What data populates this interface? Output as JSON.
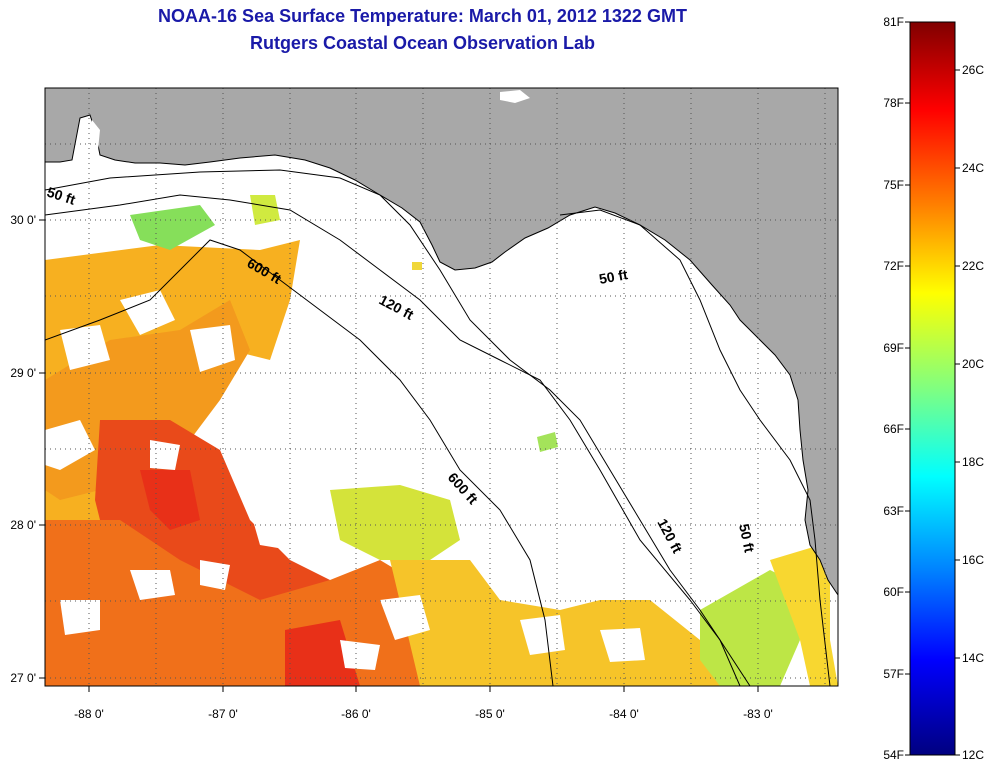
{
  "title": "NOAA-16 Sea Surface Temperature:  March 01, 2012 1322 GMT",
  "subtitle": "Rutgers Coastal Ocean Observation Lab",
  "map": {
    "lon_ticks": [
      "-88 0'",
      "-87 0'",
      "-86 0'",
      "-85 0'",
      "-84 0'",
      "-83 0'"
    ],
    "lat_ticks": [
      "30 0'",
      "29 0'",
      "28 0'",
      "27 0'"
    ],
    "contour_labels": [
      {
        "text": "50 ft"
      },
      {
        "text": "600 ft"
      },
      {
        "text": "120 ft"
      },
      {
        "text": "50 ft"
      },
      {
        "text": "600 ft"
      },
      {
        "text": "120 ft"
      },
      {
        "text": "50 ft"
      }
    ],
    "land_color": "#a8a8a8",
    "grid": true
  },
  "colorbar": {
    "f_labels": [
      "81F",
      "78F",
      "75F",
      "72F",
      "69F",
      "66F",
      "63F",
      "60F",
      "57F",
      "54F"
    ],
    "c_labels": [
      "26C",
      "24C",
      "22C",
      "20C",
      "18C",
      "16C",
      "14C",
      "12C"
    ],
    "colors": [
      "#800000",
      "#ff0000",
      "#ff8000",
      "#ffff00",
      "#80ff80",
      "#00ffff",
      "#0080ff",
      "#0000ff",
      "#000080"
    ]
  }
}
